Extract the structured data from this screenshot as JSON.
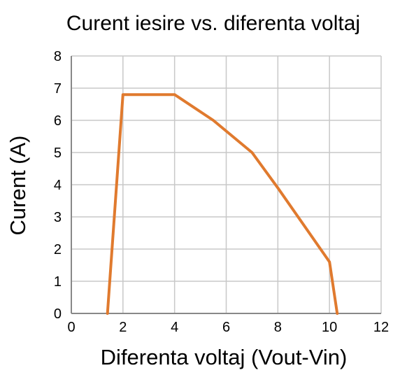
{
  "chart_data": {
    "type": "line",
    "title": "Curent iesire vs. diferenta voltaj",
    "xlabel": "Diferenta voltaj (Vout-Vin)",
    "ylabel": "Curent (A)",
    "xlim": [
      0,
      12
    ],
    "ylim": [
      0,
      8
    ],
    "xticks": [
      "0",
      "2",
      "4",
      "6",
      "8",
      "10",
      "12"
    ],
    "yticks": [
      "0",
      "1",
      "2",
      "3",
      "4",
      "5",
      "6",
      "7",
      "8"
    ],
    "grid": true,
    "legend": "none",
    "series": [
      {
        "color": "#e07a2e",
        "points": [
          {
            "x": 1.4,
            "y": 0
          },
          {
            "x": 2.0,
            "y": 6.8
          },
          {
            "x": 4.0,
            "y": 6.8
          },
          {
            "x": 5.5,
            "y": 6.0
          },
          {
            "x": 7.0,
            "y": 5.0
          },
          {
            "x": 8.0,
            "y": 3.9
          },
          {
            "x": 10.0,
            "y": 1.6
          },
          {
            "x": 10.3,
            "y": 0
          }
        ]
      }
    ]
  }
}
